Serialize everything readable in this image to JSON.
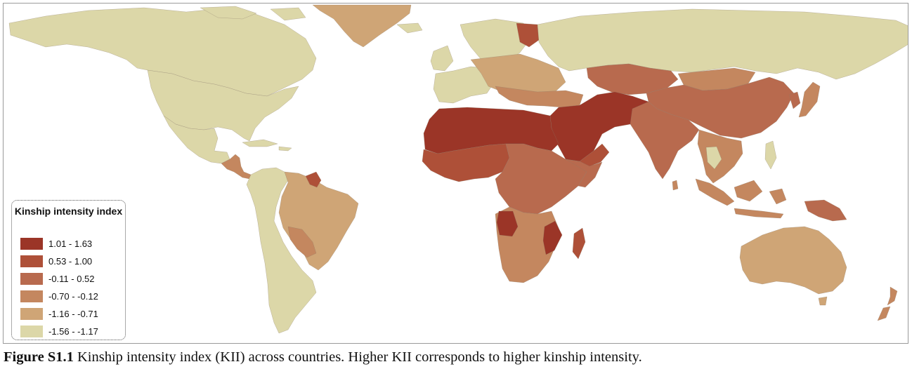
{
  "map": {
    "colors": {
      "ocean": "#ffffff",
      "c1": "#9b3527",
      "c2": "#ae5038",
      "c3": "#b86a4e",
      "c4": "#c4875f",
      "c5": "#cfa576",
      "c6": "#dcd7a8"
    }
  },
  "legend": {
    "title": "Kinship intensity index",
    "items": [
      {
        "label": "1.01 - 1.63",
        "color": "#9b3527"
      },
      {
        "label": "0.53 - 1.00",
        "color": "#ae5038"
      },
      {
        "label": "-0.11 - 0.52",
        "color": "#b86a4e"
      },
      {
        "label": "-0.70 - -0.12",
        "color": "#c4875f"
      },
      {
        "label": "-1.16 - -0.71",
        "color": "#cfa576"
      },
      {
        "label": "-1.56 - -1.17",
        "color": "#dcd7a8"
      }
    ]
  },
  "caption": {
    "label": "Figure S1.1",
    "text": " Kinship intensity index (KII) across countries. Higher KII corresponds to higher kinship intensity."
  }
}
